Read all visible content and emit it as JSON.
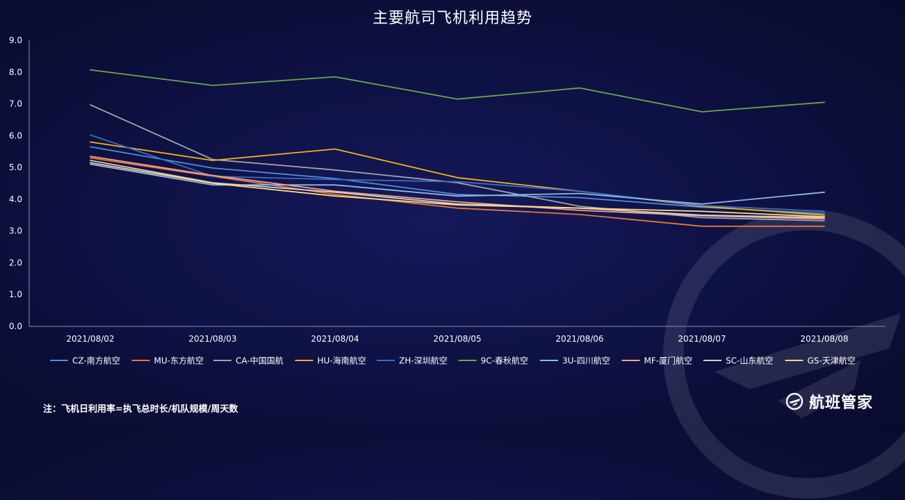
{
  "brand": {
    "name": "航班管家",
    "icon": "hangbanguanjia-logo-icon"
  },
  "footnote": "注：飞机日利用率=执飞总时长/机队规模/周天数",
  "chart_data": {
    "type": "line",
    "title": "主要航司飞机利用趋势",
    "xlabel": "",
    "ylabel": "",
    "ylim": [
      0,
      9
    ],
    "yticks": [
      "0.0",
      "1.0",
      "2.0",
      "3.0",
      "4.0",
      "5.0",
      "6.0",
      "7.0",
      "8.0",
      "9.0"
    ],
    "grid": false,
    "legend_position": "bottom",
    "categories": [
      "2021/08/02",
      "2021/08/03",
      "2021/08/04",
      "2021/08/05",
      "2021/08/06",
      "2021/08/07",
      "2021/08/08"
    ],
    "series": [
      {
        "name": "CZ-南方航空",
        "color": "#4e90d6",
        "values": [
          5.65,
          4.98,
          4.65,
          4.15,
          4.05,
          3.75,
          3.55
        ]
      },
      {
        "name": "MU-东方航空",
        "color": "#e6773a",
        "values": [
          5.3,
          4.72,
          4.15,
          3.72,
          3.52,
          3.15,
          3.15
        ]
      },
      {
        "name": "CA-中国国航",
        "color": "#a5a5a5",
        "values": [
          6.97,
          5.25,
          4.92,
          4.52,
          3.78,
          3.42,
          3.32
        ]
      },
      {
        "name": "HU-海南航空",
        "color": "#f2b315",
        "values": [
          5.8,
          5.22,
          5.58,
          4.68,
          4.25,
          3.78,
          3.5
        ]
      },
      {
        "name": "ZH-深圳航空",
        "color": "#3a6cc8",
        "values": [
          6.02,
          4.72,
          4.62,
          4.55,
          4.25,
          3.8,
          3.62
        ]
      },
      {
        "name": "9C-春秋航空",
        "color": "#6aa84f",
        "values": [
          8.07,
          7.58,
          7.85,
          7.15,
          7.5,
          6.75,
          7.05
        ]
      },
      {
        "name": "3U-四川航空",
        "color": "#8fb9ec",
        "values": [
          5.1,
          4.45,
          4.45,
          4.1,
          4.18,
          3.85,
          4.22
        ]
      },
      {
        "name": "MF-厦门航空",
        "color": "#f4a58a",
        "values": [
          5.35,
          4.75,
          4.25,
          3.92,
          3.65,
          3.48,
          3.38
        ]
      },
      {
        "name": "SC-山东航空",
        "color": "#d0d0d0",
        "values": [
          5.22,
          4.52,
          4.22,
          3.85,
          3.72,
          3.5,
          3.42
        ]
      },
      {
        "name": "GS-天津航空",
        "color": "#ffd77a",
        "values": [
          5.15,
          4.5,
          4.1,
          3.82,
          3.72,
          3.62,
          3.45
        ]
      }
    ]
  }
}
